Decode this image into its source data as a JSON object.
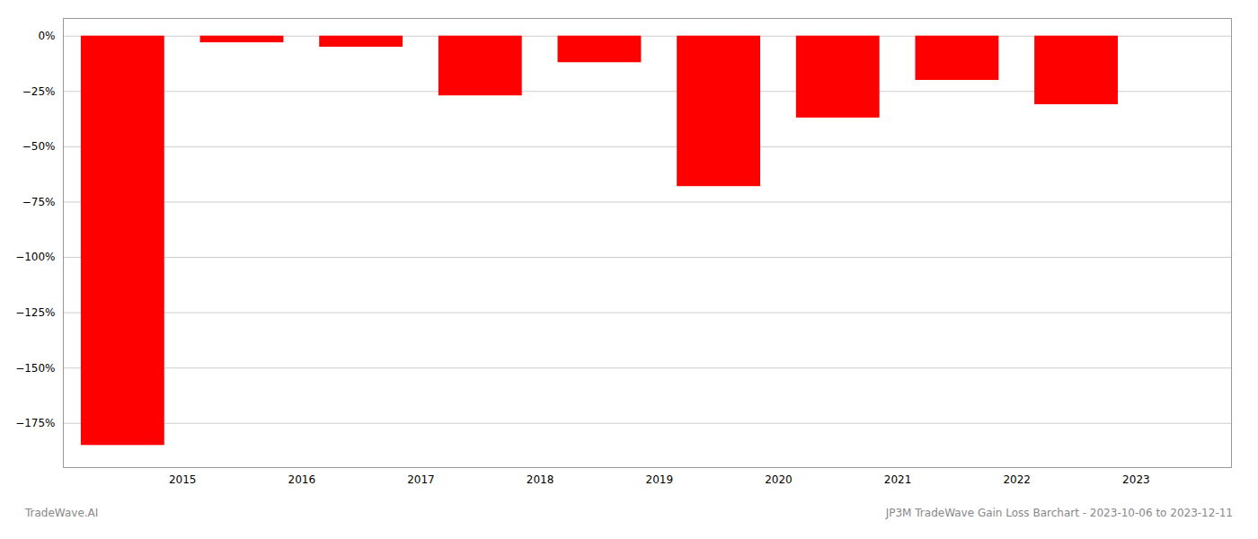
{
  "chart_data": {
    "type": "bar",
    "x": [
      2014.5,
      2015.5,
      2016.5,
      2017.5,
      2018.5,
      2019.5,
      2020.5,
      2021.5,
      2022.5
    ],
    "values": [
      -185.0,
      -3.0,
      -5.0,
      -27.0,
      -12.0,
      -68.0,
      -37.0,
      -20.0,
      -31.0
    ],
    "color": "#ff0000",
    "xlim": [
      2014.0,
      2023.8
    ],
    "xticks": [
      2015,
      2016,
      2017,
      2018,
      2019,
      2020,
      2021,
      2022,
      2023
    ],
    "ylim": [
      -195,
      8
    ],
    "yticks": [
      {
        "value": 0,
        "label": "0%"
      },
      {
        "value": -25,
        "label": "−25%"
      },
      {
        "value": -50,
        "label": "−50%"
      },
      {
        "value": -75,
        "label": "−75%"
      },
      {
        "value": -100,
        "label": "−100%"
      },
      {
        "value": -125,
        "label": "−125%"
      },
      {
        "value": -150,
        "label": "−150%"
      },
      {
        "value": -175,
        "label": "−175%"
      }
    ],
    "grid": true,
    "annotations": [
      "TradeWave.AI",
      "JP3M TradeWave Gain Loss Barchart - 2023-10-06 to 2023-12-11"
    ]
  }
}
